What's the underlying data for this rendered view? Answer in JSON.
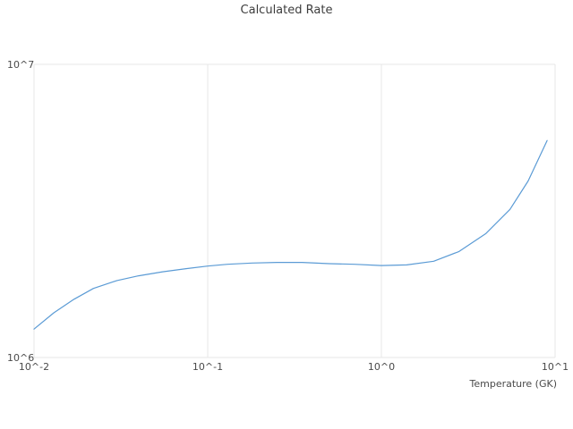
{
  "chart_data": {
    "type": "line",
    "title": "Calculated Rate",
    "xlabel": "Temperature (GK)",
    "ylabel": "",
    "xscale": "log",
    "yscale": "log",
    "xlim": [
      0.01,
      10
    ],
    "ylim": [
      1000000,
      10000000
    ],
    "grid": true,
    "legend": false,
    "x_ticks": [
      {
        "value": 0.01,
        "label": "10^-2"
      },
      {
        "value": 0.1,
        "label": "10^-1"
      },
      {
        "value": 1,
        "label": "10^0"
      },
      {
        "value": 10,
        "label": "10^1"
      }
    ],
    "y_ticks": [
      {
        "value": 1000000,
        "label": "10^6"
      },
      {
        "value": 10000000,
        "label": "10^7"
      }
    ],
    "x": [
      0.01,
      0.013,
      0.017,
      0.022,
      0.03,
      0.04,
      0.055,
      0.075,
      0.1,
      0.13,
      0.18,
      0.25,
      0.35,
      0.5,
      0.7,
      1.0,
      1.4,
      2.0,
      2.8,
      4.0,
      5.5,
      7.0,
      9.0
    ],
    "y": [
      1250000,
      1420000,
      1580000,
      1720000,
      1830000,
      1900000,
      1960000,
      2010000,
      2050000,
      2080000,
      2100000,
      2110000,
      2110000,
      2090000,
      2080000,
      2060000,
      2070000,
      2130000,
      2300000,
      2650000,
      3200000,
      4000000,
      5500000
    ],
    "line_color": "#5b9bd5",
    "grid_color": "#e7e7e7",
    "text_color": "#4a4a4a",
    "background_color": "#ffffff"
  }
}
